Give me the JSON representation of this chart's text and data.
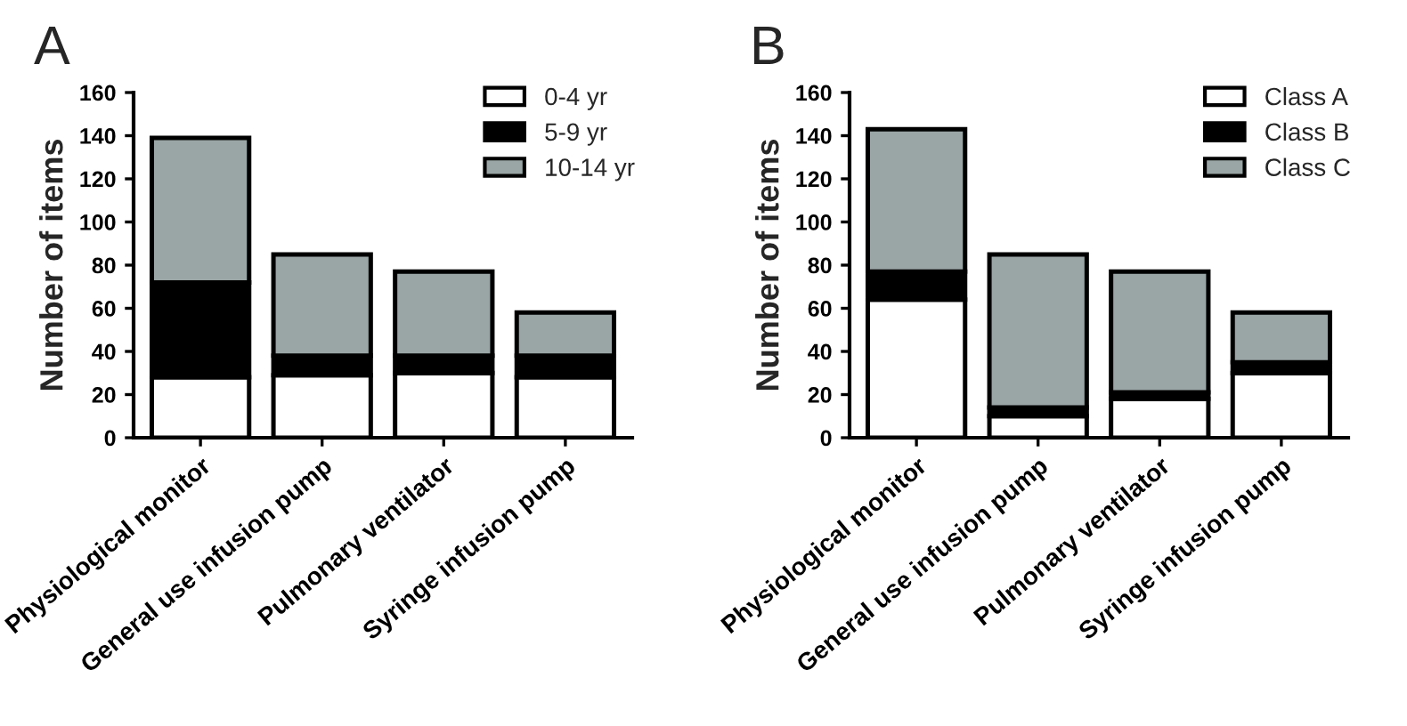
{
  "chart_data": [
    {
      "type": "bar",
      "title": "A",
      "ylabel": "Number of items",
      "stacked": true,
      "categories": [
        "Physiological monitor",
        "General use infusion pump",
        "Pulmonary ventilator",
        "Syringe infusion pump"
      ],
      "series": [
        {
          "name": "0-4 yr",
          "color": "#ffffff",
          "values": [
            28,
            29,
            30,
            28
          ]
        },
        {
          "name": "5-9 yr",
          "color": "#000000",
          "values": [
            44,
            9,
            8,
            10
          ]
        },
        {
          "name": "10-14 yr",
          "color": "#9aa5a5",
          "values": [
            67,
            47,
            39,
            20
          ]
        }
      ],
      "ylim": [
        0,
        160
      ],
      "yticks": [
        0,
        20,
        40,
        60,
        80,
        100,
        120,
        140,
        160
      ],
      "grid": false,
      "legend": "top right"
    },
    {
      "type": "bar",
      "title": "B",
      "ylabel": "Number of items",
      "stacked": true,
      "categories": [
        "Physiological monitor",
        "General use infusion pump",
        "Pulmonary ventilator",
        "Syringe infusion pump"
      ],
      "series": [
        {
          "name": "Class A",
          "color": "#ffffff",
          "values": [
            64,
            10,
            18,
            30
          ]
        },
        {
          "name": "Class B",
          "color": "#000000",
          "values": [
            13,
            4,
            3,
            5
          ]
        },
        {
          "name": "Class C",
          "color": "#9aa5a5",
          "values": [
            66,
            71,
            56,
            23
          ]
        }
      ],
      "ylim": [
        0,
        160
      ],
      "yticks": [
        0,
        20,
        40,
        60,
        80,
        100,
        120,
        140,
        160
      ],
      "grid": false,
      "legend": "top right"
    }
  ]
}
